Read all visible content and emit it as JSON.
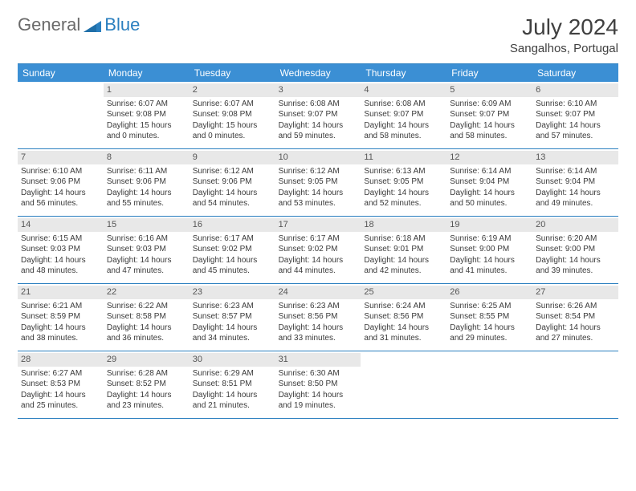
{
  "logo": {
    "general": "General",
    "blue": "Blue",
    "shape_color": "#2a7fbf"
  },
  "title": "July 2024",
  "location": "Sangalhos, Portugal",
  "colors": {
    "header_bg": "#3b8fd4",
    "header_text": "#ffffff",
    "border": "#2a7fbf",
    "daynum_bg": "#e8e8e8",
    "text": "#3a3a3a"
  },
  "weekdays": [
    "Sunday",
    "Monday",
    "Tuesday",
    "Wednesday",
    "Thursday",
    "Friday",
    "Saturday"
  ],
  "days": [
    {
      "n": "",
      "sunrise": "",
      "sunset": "",
      "daylight": ""
    },
    {
      "n": "1",
      "sunrise": "Sunrise: 6:07 AM",
      "sunset": "Sunset: 9:08 PM",
      "daylight": "Daylight: 15 hours and 0 minutes."
    },
    {
      "n": "2",
      "sunrise": "Sunrise: 6:07 AM",
      "sunset": "Sunset: 9:08 PM",
      "daylight": "Daylight: 15 hours and 0 minutes."
    },
    {
      "n": "3",
      "sunrise": "Sunrise: 6:08 AM",
      "sunset": "Sunset: 9:07 PM",
      "daylight": "Daylight: 14 hours and 59 minutes."
    },
    {
      "n": "4",
      "sunrise": "Sunrise: 6:08 AM",
      "sunset": "Sunset: 9:07 PM",
      "daylight": "Daylight: 14 hours and 58 minutes."
    },
    {
      "n": "5",
      "sunrise": "Sunrise: 6:09 AM",
      "sunset": "Sunset: 9:07 PM",
      "daylight": "Daylight: 14 hours and 58 minutes."
    },
    {
      "n": "6",
      "sunrise": "Sunrise: 6:10 AM",
      "sunset": "Sunset: 9:07 PM",
      "daylight": "Daylight: 14 hours and 57 minutes."
    },
    {
      "n": "7",
      "sunrise": "Sunrise: 6:10 AM",
      "sunset": "Sunset: 9:06 PM",
      "daylight": "Daylight: 14 hours and 56 minutes."
    },
    {
      "n": "8",
      "sunrise": "Sunrise: 6:11 AM",
      "sunset": "Sunset: 9:06 PM",
      "daylight": "Daylight: 14 hours and 55 minutes."
    },
    {
      "n": "9",
      "sunrise": "Sunrise: 6:12 AM",
      "sunset": "Sunset: 9:06 PM",
      "daylight": "Daylight: 14 hours and 54 minutes."
    },
    {
      "n": "10",
      "sunrise": "Sunrise: 6:12 AM",
      "sunset": "Sunset: 9:05 PM",
      "daylight": "Daylight: 14 hours and 53 minutes."
    },
    {
      "n": "11",
      "sunrise": "Sunrise: 6:13 AM",
      "sunset": "Sunset: 9:05 PM",
      "daylight": "Daylight: 14 hours and 52 minutes."
    },
    {
      "n": "12",
      "sunrise": "Sunrise: 6:14 AM",
      "sunset": "Sunset: 9:04 PM",
      "daylight": "Daylight: 14 hours and 50 minutes."
    },
    {
      "n": "13",
      "sunrise": "Sunrise: 6:14 AM",
      "sunset": "Sunset: 9:04 PM",
      "daylight": "Daylight: 14 hours and 49 minutes."
    },
    {
      "n": "14",
      "sunrise": "Sunrise: 6:15 AM",
      "sunset": "Sunset: 9:03 PM",
      "daylight": "Daylight: 14 hours and 48 minutes."
    },
    {
      "n": "15",
      "sunrise": "Sunrise: 6:16 AM",
      "sunset": "Sunset: 9:03 PM",
      "daylight": "Daylight: 14 hours and 47 minutes."
    },
    {
      "n": "16",
      "sunrise": "Sunrise: 6:17 AM",
      "sunset": "Sunset: 9:02 PM",
      "daylight": "Daylight: 14 hours and 45 minutes."
    },
    {
      "n": "17",
      "sunrise": "Sunrise: 6:17 AM",
      "sunset": "Sunset: 9:02 PM",
      "daylight": "Daylight: 14 hours and 44 minutes."
    },
    {
      "n": "18",
      "sunrise": "Sunrise: 6:18 AM",
      "sunset": "Sunset: 9:01 PM",
      "daylight": "Daylight: 14 hours and 42 minutes."
    },
    {
      "n": "19",
      "sunrise": "Sunrise: 6:19 AM",
      "sunset": "Sunset: 9:00 PM",
      "daylight": "Daylight: 14 hours and 41 minutes."
    },
    {
      "n": "20",
      "sunrise": "Sunrise: 6:20 AM",
      "sunset": "Sunset: 9:00 PM",
      "daylight": "Daylight: 14 hours and 39 minutes."
    },
    {
      "n": "21",
      "sunrise": "Sunrise: 6:21 AM",
      "sunset": "Sunset: 8:59 PM",
      "daylight": "Daylight: 14 hours and 38 minutes."
    },
    {
      "n": "22",
      "sunrise": "Sunrise: 6:22 AM",
      "sunset": "Sunset: 8:58 PM",
      "daylight": "Daylight: 14 hours and 36 minutes."
    },
    {
      "n": "23",
      "sunrise": "Sunrise: 6:23 AM",
      "sunset": "Sunset: 8:57 PM",
      "daylight": "Daylight: 14 hours and 34 minutes."
    },
    {
      "n": "24",
      "sunrise": "Sunrise: 6:23 AM",
      "sunset": "Sunset: 8:56 PM",
      "daylight": "Daylight: 14 hours and 33 minutes."
    },
    {
      "n": "25",
      "sunrise": "Sunrise: 6:24 AM",
      "sunset": "Sunset: 8:56 PM",
      "daylight": "Daylight: 14 hours and 31 minutes."
    },
    {
      "n": "26",
      "sunrise": "Sunrise: 6:25 AM",
      "sunset": "Sunset: 8:55 PM",
      "daylight": "Daylight: 14 hours and 29 minutes."
    },
    {
      "n": "27",
      "sunrise": "Sunrise: 6:26 AM",
      "sunset": "Sunset: 8:54 PM",
      "daylight": "Daylight: 14 hours and 27 minutes."
    },
    {
      "n": "28",
      "sunrise": "Sunrise: 6:27 AM",
      "sunset": "Sunset: 8:53 PM",
      "daylight": "Daylight: 14 hours and 25 minutes."
    },
    {
      "n": "29",
      "sunrise": "Sunrise: 6:28 AM",
      "sunset": "Sunset: 8:52 PM",
      "daylight": "Daylight: 14 hours and 23 minutes."
    },
    {
      "n": "30",
      "sunrise": "Sunrise: 6:29 AM",
      "sunset": "Sunset: 8:51 PM",
      "daylight": "Daylight: 14 hours and 21 minutes."
    },
    {
      "n": "31",
      "sunrise": "Sunrise: 6:30 AM",
      "sunset": "Sunset: 8:50 PM",
      "daylight": "Daylight: 14 hours and 19 minutes."
    },
    {
      "n": "",
      "sunrise": "",
      "sunset": "",
      "daylight": ""
    },
    {
      "n": "",
      "sunrise": "",
      "sunset": "",
      "daylight": ""
    },
    {
      "n": "",
      "sunrise": "",
      "sunset": "",
      "daylight": ""
    }
  ]
}
